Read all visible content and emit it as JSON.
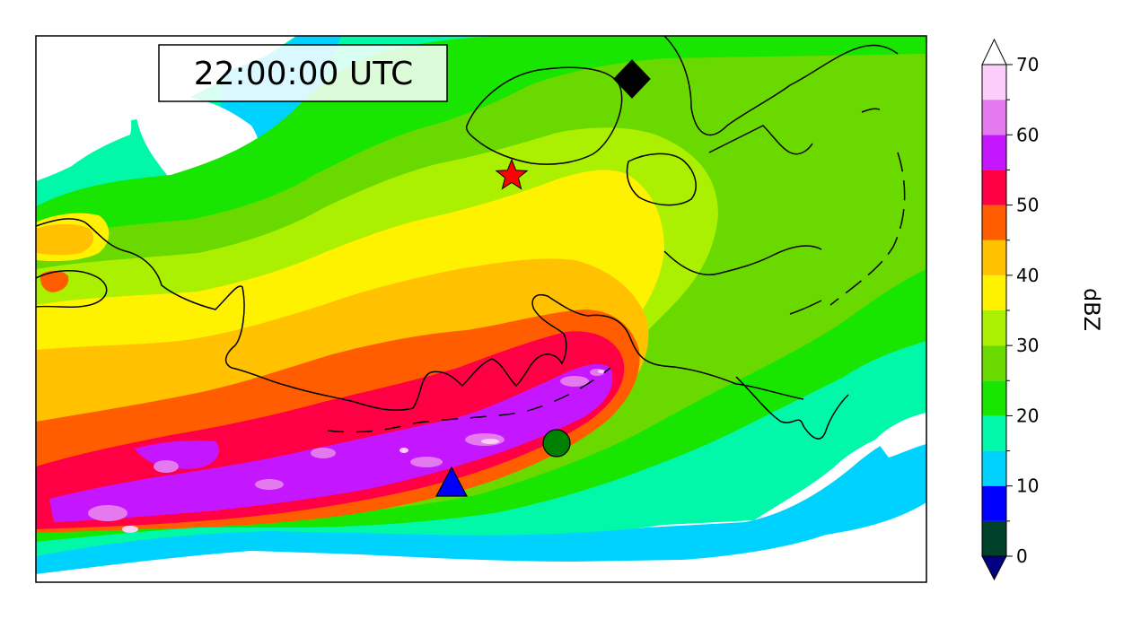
{
  "time_label": "22:00:00 UTC",
  "colorbar": {
    "label": "dBZ",
    "ticks": [
      "0",
      "10",
      "20",
      "30",
      "40",
      "50",
      "60",
      "70"
    ],
    "min": 0,
    "max": 70,
    "step": 5,
    "under_color": "#000080",
    "over_color": "#ffffff",
    "levels": [
      {
        "from": 0,
        "to": 5,
        "color": "#00412b"
      },
      {
        "from": 5,
        "to": 10,
        "color": "#0000ff"
      },
      {
        "from": 10,
        "to": 15,
        "color": "#00d2ff"
      },
      {
        "from": 15,
        "to": 20,
        "color": "#00f8a8"
      },
      {
        "from": 20,
        "to": 25,
        "color": "#18e600"
      },
      {
        "from": 25,
        "to": 30,
        "color": "#6ad900"
      },
      {
        "from": 30,
        "to": 35,
        "color": "#aaf000"
      },
      {
        "from": 35,
        "to": 40,
        "color": "#fff200"
      },
      {
        "from": 40,
        "to": 45,
        "color": "#ffc100"
      },
      {
        "from": 45,
        "to": 50,
        "color": "#ff5d00"
      },
      {
        "from": 50,
        "to": 55,
        "color": "#ff0044"
      },
      {
        "from": 55,
        "to": 60,
        "color": "#c517ff"
      },
      {
        "from": 60,
        "to": 65,
        "color": "#e57aee"
      },
      {
        "from": 65,
        "to": 70,
        "color": "#fbcef9"
      }
    ]
  },
  "markers": [
    {
      "name": "diamond-marker",
      "shape": "diamond",
      "color": "#000000"
    },
    {
      "name": "star-marker",
      "shape": "star",
      "color": "#ff0000"
    },
    {
      "name": "circle-marker",
      "shape": "circle",
      "color": "#008000"
    },
    {
      "name": "triangle-marker",
      "shape": "triangle",
      "color": "#0000ff"
    }
  ]
}
